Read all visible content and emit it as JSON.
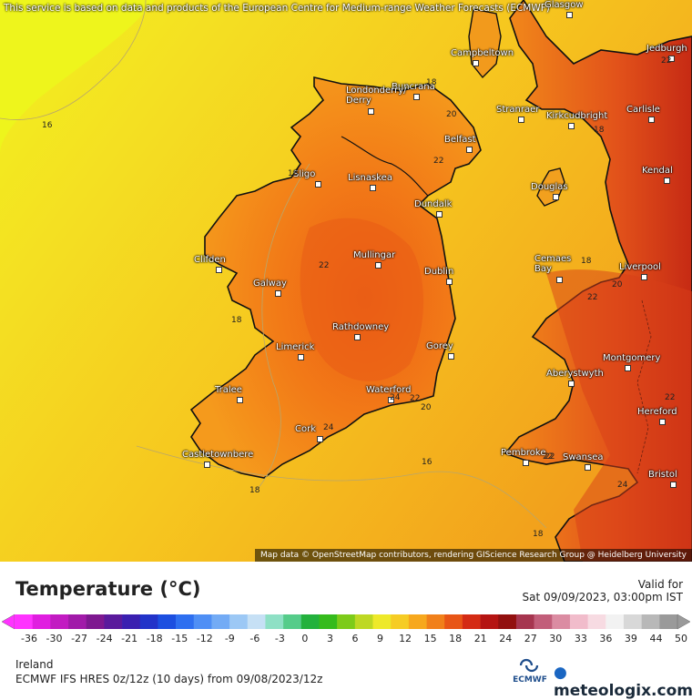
{
  "attribution_top": "This service is based on data and products of the European Centre for Medium-range Weather Forecasts (ECMWF)",
  "attribution_bottom": "Map data © OpenStreetMap contributors, rendering GIScience Research Group @ Heidelberg University",
  "legend": {
    "title": "Temperature (°C)",
    "ticks": [
      "-36",
      "-30",
      "-27",
      "-24",
      "-21",
      "-18",
      "-15",
      "-12",
      "-9",
      "-6",
      "-3",
      "0",
      "3",
      "6",
      "9",
      "12",
      "15",
      "18",
      "21",
      "24",
      "27",
      "30",
      "33",
      "36",
      "39",
      "44",
      "50"
    ],
    "colors": [
      "#ff33ff",
      "#e01ee0",
      "#c21bc2",
      "#a11aa9",
      "#7e1890",
      "#5a1a9c",
      "#3a1fb0",
      "#2233c9",
      "#1c4fe0",
      "#2e6ff0",
      "#4f8ff5",
      "#73abf5",
      "#9cc8f5",
      "#c6e0f5",
      "#8ee0c5",
      "#55cc8a",
      "#23b13d",
      "#35bb1c",
      "#7dcb19",
      "#bed823",
      "#eee92a",
      "#f6cc24",
      "#f7a81d",
      "#f1801a",
      "#e85516",
      "#d42b14",
      "#b51412",
      "#92100f",
      "#a6354f",
      "#c25e7a",
      "#db8ca2",
      "#f1bccb",
      "#f7dbe2",
      "#f2f2f2",
      "#d8d8d8",
      "#b8b8b8",
      "#9a9a9a"
    ],
    "valid_label": "Valid for",
    "valid_time": "Sat 09/09/2023, 03:00pm IST",
    "region": "Ireland",
    "model": "ECMWF IFS HRES 0z/12z (10 days) from 09/08/2023/12z"
  },
  "logos": {
    "ecmwf": "ECMWF",
    "meteologix": "meteologix.com",
    "ecmwf_icon": "ecmwf-logo-icon",
    "meteologix_icon": "meteologix-logo-icon"
  },
  "map": {
    "cities": [
      {
        "name": "Glasgow"
      },
      {
        "name": "Campbeltown"
      },
      {
        "name": "Jedburgh"
      },
      {
        "name": "Buncrana"
      },
      {
        "name": "Londonderry/\nDerry"
      },
      {
        "name": "Stranraer"
      },
      {
        "name": "Kirkcudbright"
      },
      {
        "name": "Carlisle"
      },
      {
        "name": "Belfast"
      },
      {
        "name": "Sligo"
      },
      {
        "name": "Lisnaskea"
      },
      {
        "name": "Kendal"
      },
      {
        "name": "Douglas"
      },
      {
        "name": "Dundalk"
      },
      {
        "name": "Clifden"
      },
      {
        "name": "Mullingar"
      },
      {
        "name": "Cemaes\nBay"
      },
      {
        "name": "Liverpool"
      },
      {
        "name": "Galway"
      },
      {
        "name": "Dublin"
      },
      {
        "name": "Rathdowney"
      },
      {
        "name": "Limerick"
      },
      {
        "name": "Gorey"
      },
      {
        "name": "Aberystwyth"
      },
      {
        "name": "Montgomery"
      },
      {
        "name": "Tralee"
      },
      {
        "name": "Waterford"
      },
      {
        "name": "Hereford"
      },
      {
        "name": "Cork"
      },
      {
        "name": "Castletownbere"
      },
      {
        "name": "Pembroke"
      },
      {
        "name": "Swansea"
      },
      {
        "name": "Bristol"
      }
    ],
    "isotherm_labels": [
      "16",
      "18",
      "20",
      "22",
      "18",
      "22",
      "18",
      "18",
      "22",
      "18",
      "22",
      "20",
      "22",
      "24",
      "22",
      "20",
      "24",
      "16",
      "18",
      "22",
      "24",
      "18",
      "22"
    ]
  }
}
